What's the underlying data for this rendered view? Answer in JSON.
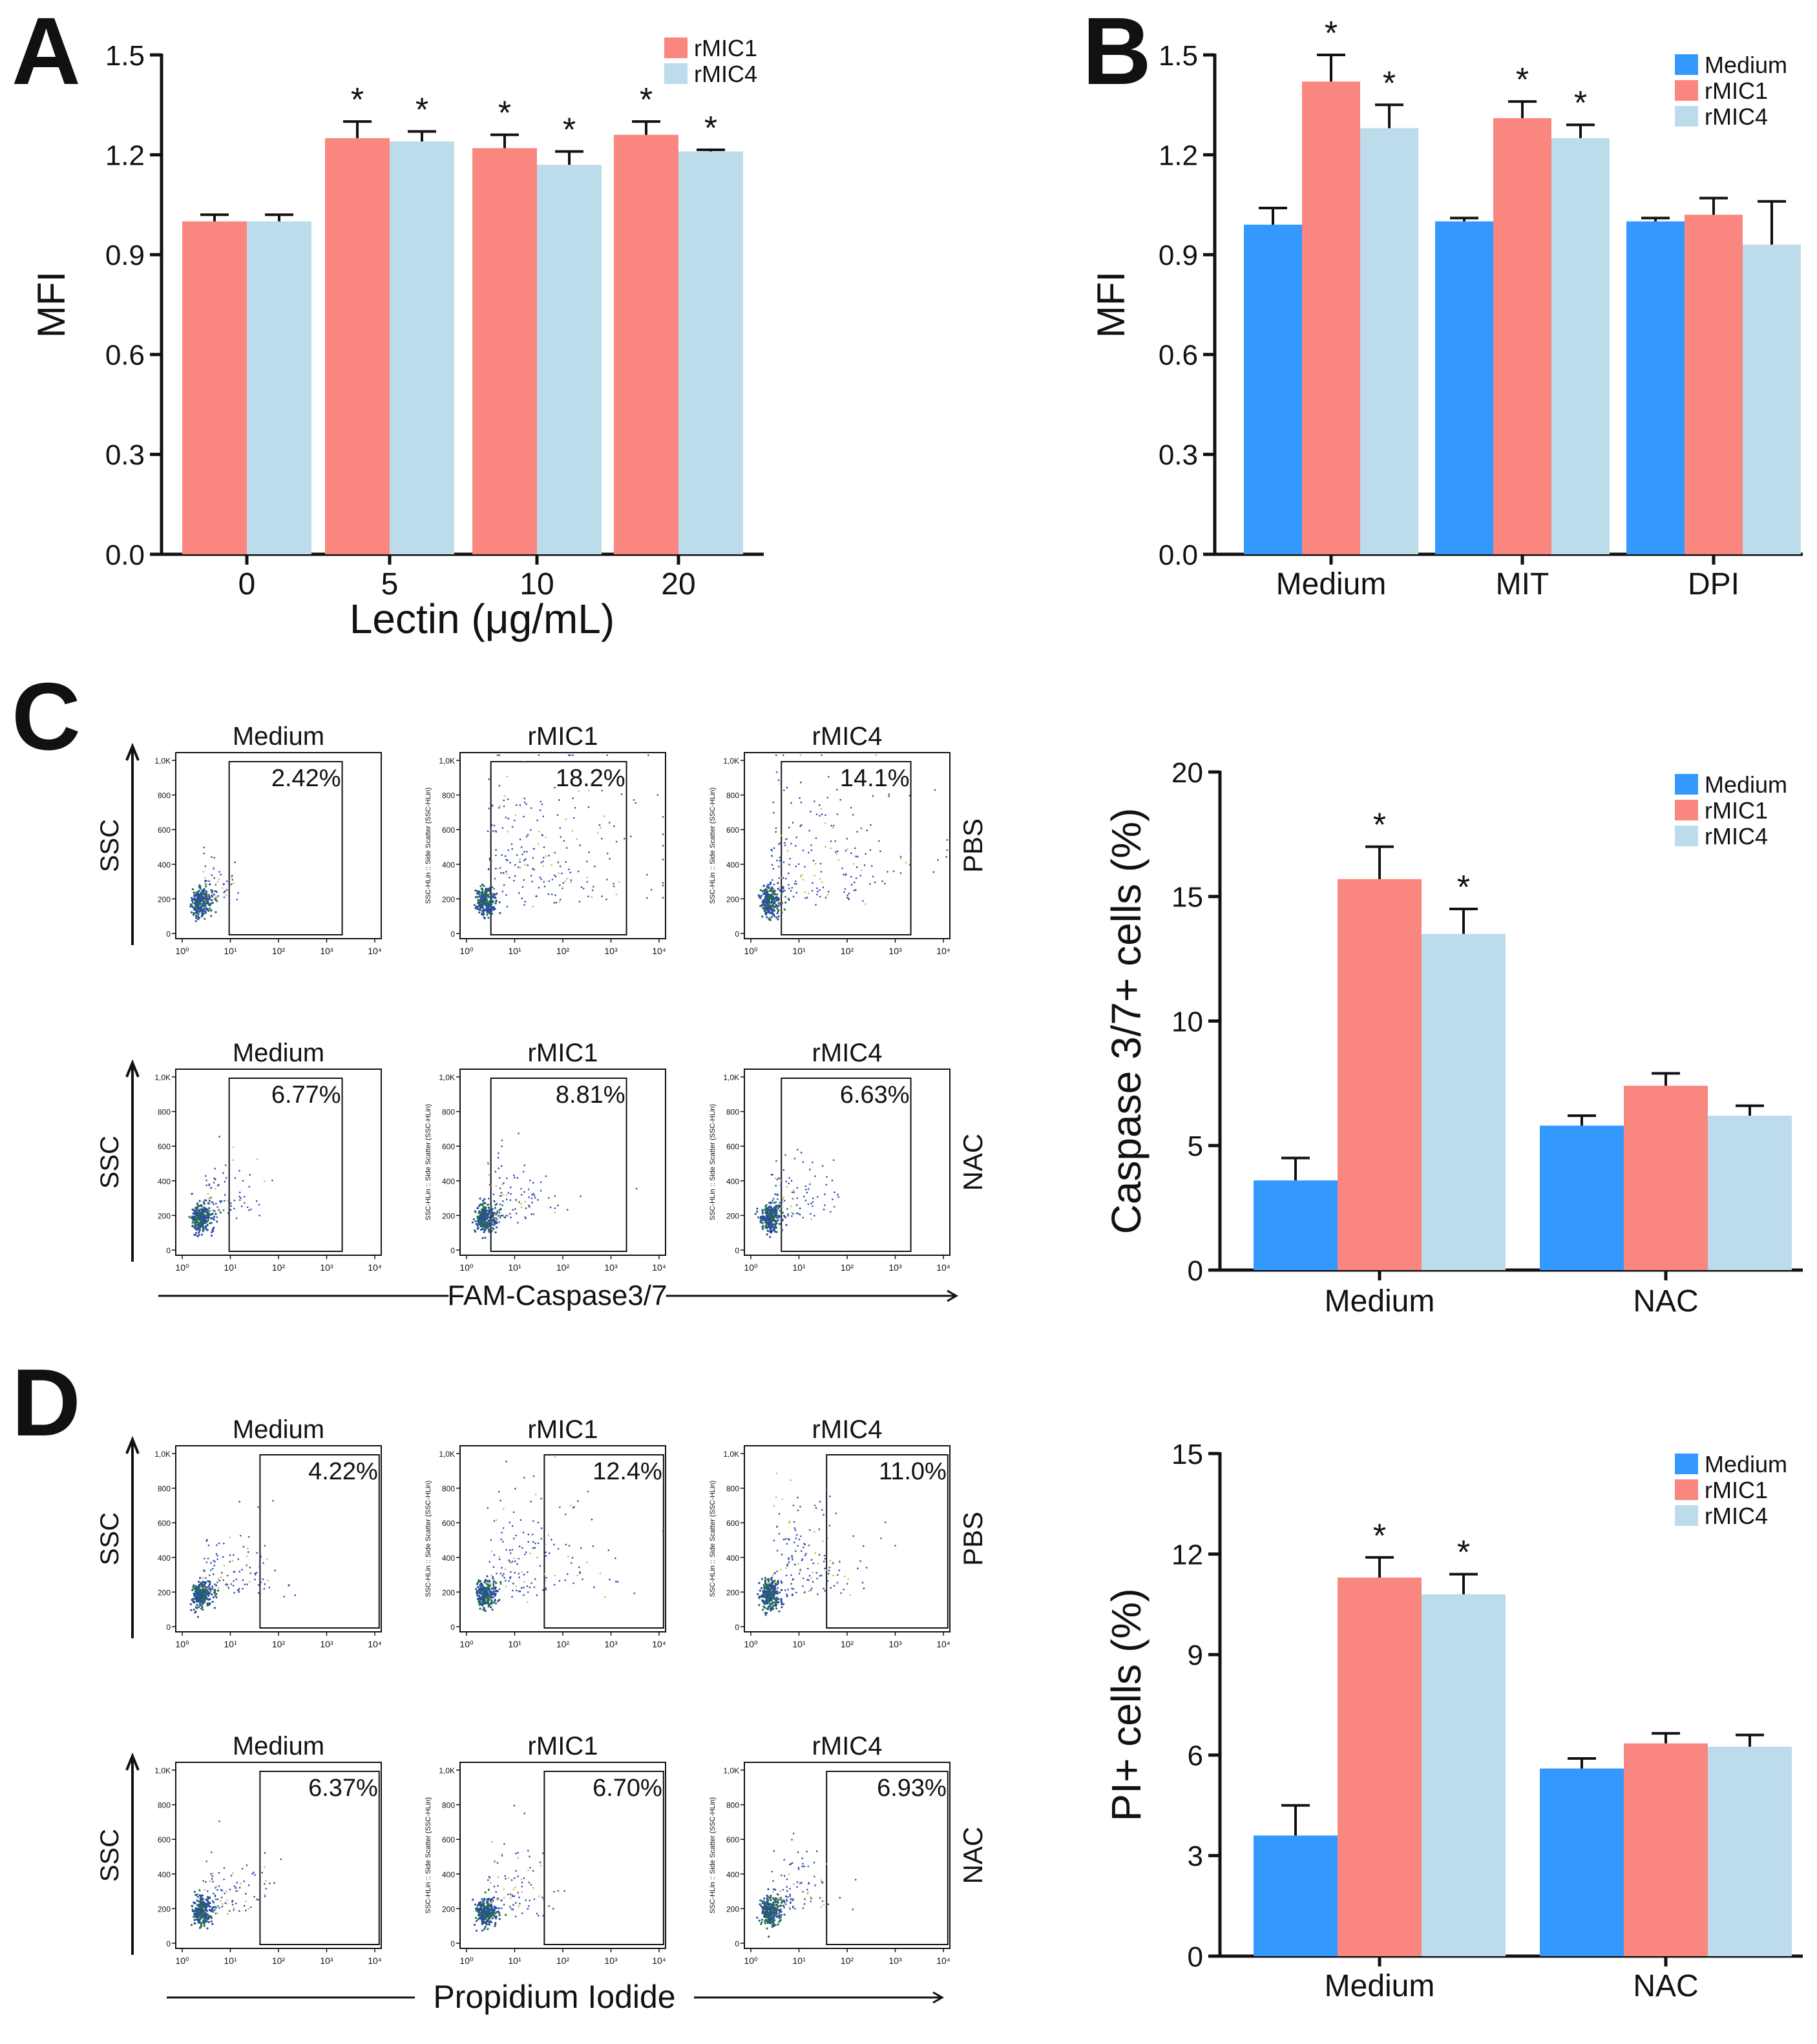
{
  "panel_letters": [
    "A",
    "B",
    "C",
    "D"
  ],
  "colors": {
    "medium": "#3399ff",
    "rmic1": "#fa8680",
    "rmic4": "#bddceb",
    "axis": "#111111",
    "dot_core": "#1e7a2a",
    "dot_mid": "#2c4aa8",
    "dot_sparse": "#d8b34a"
  },
  "significance_marker": "*",
  "chart_data": [
    {
      "id": "A",
      "type": "bar",
      "title": "",
      "xlabel": "Lectin (μg/mL)",
      "ylabel": "MFI",
      "categories": [
        "0",
        "5",
        "10",
        "20"
      ],
      "ylim": [
        0,
        1.5
      ],
      "yticks": [
        "0.0",
        "0.3",
        "0.6",
        "0.9",
        "1.2",
        "1.5"
      ],
      "legend_position": "top-right",
      "series": [
        {
          "name": "rMIC1",
          "color_key": "rmic1",
          "values": [
            1.0,
            1.25,
            1.22,
            1.26
          ],
          "errors": [
            0.02,
            0.05,
            0.04,
            0.04
          ],
          "significant": [
            false,
            true,
            true,
            true
          ]
        },
        {
          "name": "rMIC4",
          "color_key": "rmic4",
          "values": [
            1.0,
            1.24,
            1.17,
            1.21
          ],
          "errors": [
            0.02,
            0.03,
            0.04,
            0.005
          ],
          "significant": [
            false,
            true,
            true,
            true
          ]
        }
      ]
    },
    {
      "id": "B",
      "type": "bar",
      "title": "",
      "xlabel": "",
      "ylabel": "MFI",
      "categories": [
        "Medium",
        "MIT",
        "DPI"
      ],
      "ylim": [
        0,
        1.5
      ],
      "yticks": [
        "0.0",
        "0.3",
        "0.6",
        "0.9",
        "1.2",
        "1.5"
      ],
      "legend_position": "top-right",
      "series": [
        {
          "name": "Medium",
          "color_key": "medium",
          "values": [
            0.99,
            1.0,
            1.0
          ],
          "errors": [
            0.05,
            0.01,
            0.01
          ],
          "significant": [
            false,
            false,
            false
          ]
        },
        {
          "name": "rMIC1",
          "color_key": "rmic1",
          "values": [
            1.42,
            1.31,
            1.02
          ],
          "errors": [
            0.08,
            0.05,
            0.05
          ],
          "significant": [
            true,
            true,
            false
          ]
        },
        {
          "name": "rMIC4",
          "color_key": "rmic4",
          "values": [
            1.28,
            1.25,
            0.93
          ],
          "errors": [
            0.07,
            0.04,
            0.13
          ],
          "significant": [
            true,
            true,
            false
          ]
        }
      ]
    },
    {
      "id": "C",
      "type": "bar",
      "title": "",
      "xlabel": "",
      "ylabel": "Caspase 3/7+ cells (%)",
      "categories": [
        "Medium",
        "NAC"
      ],
      "ylim": [
        0,
        20
      ],
      "yticks": [
        "0",
        "5",
        "10",
        "15",
        "20"
      ],
      "legend_position": "top-right",
      "series": [
        {
          "name": "Medium",
          "color_key": "medium",
          "values": [
            3.6,
            5.8
          ],
          "errors": [
            0.9,
            0.4
          ],
          "significant": [
            false,
            false
          ]
        },
        {
          "name": "rMIC1",
          "color_key": "rmic1",
          "values": [
            15.7,
            7.4
          ],
          "errors": [
            1.3,
            0.5
          ],
          "significant": [
            true,
            false
          ]
        },
        {
          "name": "rMIC4",
          "color_key": "rmic4",
          "values": [
            13.5,
            6.2
          ],
          "errors": [
            1.0,
            0.4
          ],
          "significant": [
            true,
            false
          ]
        }
      ]
    },
    {
      "id": "D",
      "type": "bar",
      "title": "",
      "xlabel": "",
      "ylabel": "PI+ cells (%)",
      "categories": [
        "Medium",
        "NAC"
      ],
      "ylim": [
        0,
        15
      ],
      "yticks": [
        "0",
        "3",
        "6",
        "9",
        "12",
        "15"
      ],
      "legend_position": "top-right",
      "series": [
        {
          "name": "Medium",
          "color_key": "medium",
          "values": [
            3.6,
            5.6
          ],
          "errors": [
            0.9,
            0.3
          ],
          "significant": [
            false,
            false
          ]
        },
        {
          "name": "rMIC1",
          "color_key": "rmic1",
          "values": [
            11.3,
            6.35
          ],
          "errors": [
            0.6,
            0.3
          ],
          "significant": [
            true,
            false
          ]
        },
        {
          "name": "rMIC4",
          "color_key": "rmic4",
          "values": [
            10.8,
            6.25
          ],
          "errors": [
            0.6,
            0.35
          ],
          "significant": [
            true,
            false
          ]
        }
      ]
    }
  ],
  "flow_panels": [
    {
      "id": "C",
      "y_label": "SSC",
      "x_label": "FAM-Caspase3/7",
      "row_labels": [
        "PBS",
        "NAC"
      ],
      "column_titles": [
        "Medium",
        "rMIC1",
        "rMIC4"
      ],
      "y_axis_text": "SSC-HLin :: Side Scatter (SSC-HLin)",
      "y_tick_labels": [
        "0",
        "200",
        "400",
        "600",
        "800",
        "1,0K"
      ],
      "x_tick_labels": [
        "10⁰",
        "10¹",
        "10²",
        "10³",
        "10⁴"
      ],
      "percentages": [
        [
          "2.42%",
          "18.2%",
          "14.1%"
        ],
        [
          "6.77%",
          "8.81%",
          "6.63%"
        ]
      ]
    },
    {
      "id": "D",
      "y_label": "SSC",
      "x_label": "Propidium Iodide",
      "row_labels": [
        "PBS",
        "NAC"
      ],
      "column_titles": [
        "Medium",
        "rMIC1",
        "rMIC4"
      ],
      "y_axis_text": "SSC-HLin :: Side Scatter (SSC-HLin)",
      "y_tick_labels": [
        "0",
        "200",
        "400",
        "600",
        "800",
        "1,0K"
      ],
      "x_tick_labels": [
        "10⁰",
        "10¹",
        "10²",
        "10³",
        "10⁴"
      ],
      "percentages": [
        [
          "4.22%",
          "12.4%",
          "11.0%"
        ],
        [
          "6.37%",
          "6.70%",
          "6.93%"
        ]
      ]
    }
  ]
}
